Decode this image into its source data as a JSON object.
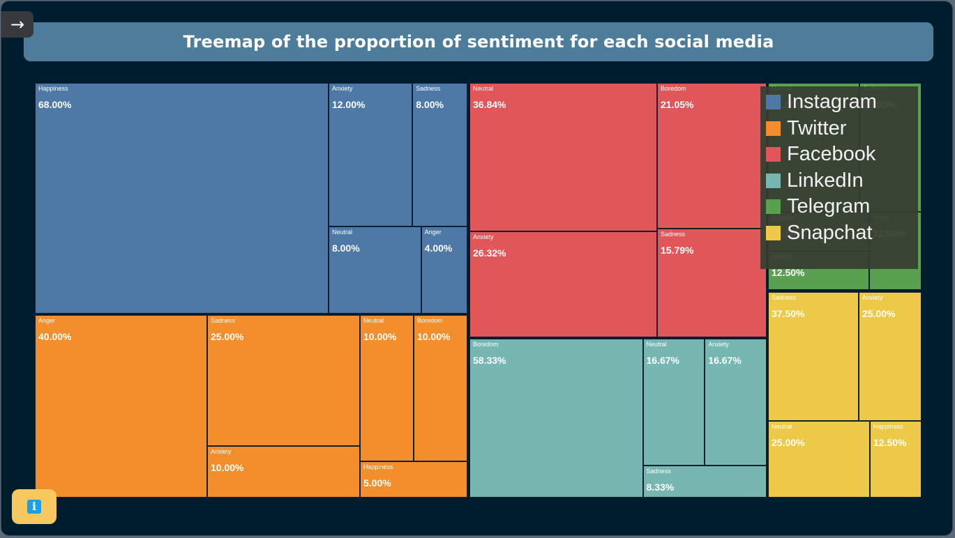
{
  "title": "Treemap of the proportion of sentiment for each social media",
  "nav": {
    "toggle_icon": "→"
  },
  "info": {
    "icon": "i"
  },
  "colors": {
    "Instagram": "#4e79a7",
    "Twitter": "#f28e2b",
    "Facebook": "#e15759",
    "LinkedIn": "#76b7b2",
    "Telegram": "#59a14f",
    "Snapchat": "#edc948"
  },
  "legend": [
    "Instagram",
    "Twitter",
    "Facebook",
    "LinkedIn",
    "Telegram",
    "Snapchat"
  ],
  "chart_data": {
    "type": "treemap",
    "title": "Treemap of the proportion of sentiment for each social media",
    "groups": [
      {
        "name": "Instagram",
        "children": [
          {
            "name": "Happiness",
            "value": 68.0,
            "label": "68.00%"
          },
          {
            "name": "Anxiety",
            "value": 12.0,
            "label": "12.00%"
          },
          {
            "name": "Sadness",
            "value": 8.0,
            "label": "8.00%"
          },
          {
            "name": "Neutral",
            "value": 8.0,
            "label": "8.00%"
          },
          {
            "name": "Anger",
            "value": 4.0,
            "label": "4.00%"
          }
        ]
      },
      {
        "name": "Twitter",
        "children": [
          {
            "name": "Anger",
            "value": 40.0,
            "label": "40.00%"
          },
          {
            "name": "Sadness",
            "value": 25.0,
            "label": "25.00%"
          },
          {
            "name": "Anxiety",
            "value": 10.0,
            "label": "10.00%"
          },
          {
            "name": "Neutral",
            "value": 10.0,
            "label": "10.00%"
          },
          {
            "name": "Boredom",
            "value": 10.0,
            "label": "10.00%"
          },
          {
            "name": "Happiness",
            "value": 5.0,
            "label": "5.00%"
          }
        ]
      },
      {
        "name": "Facebook",
        "children": [
          {
            "name": "Neutral",
            "value": 36.84,
            "label": "36.84%"
          },
          {
            "name": "Anxiety",
            "value": 26.32,
            "label": "26.32%"
          },
          {
            "name": "Boredom",
            "value": 21.05,
            "label": "21.05%"
          },
          {
            "name": "Sadness",
            "value": 15.79,
            "label": "15.79%"
          }
        ]
      },
      {
        "name": "LinkedIn",
        "children": [
          {
            "name": "Boredom",
            "value": 58.33,
            "label": "58.33%"
          },
          {
            "name": "Neutral",
            "value": 16.67,
            "label": "16.67%"
          },
          {
            "name": "Anxiety",
            "value": 16.67,
            "label": "16.67%"
          },
          {
            "name": "Sadness",
            "value": 8.33,
            "label": "8.33%"
          }
        ]
      },
      {
        "name": "Telegram",
        "children": [
          {
            "name": "Neutral",
            "value": 25.0,
            "label": "25.00%"
          },
          {
            "name": "Sadness",
            "value": 25.0,
            "label": "25.00%"
          },
          {
            "name": "Boredom",
            "value": 12.5,
            "label": "12.50%"
          },
          {
            "name": "Anger",
            "value": 12.5,
            "label": "12.50%"
          },
          {
            "name": "Anxiety",
            "value": 12.5,
            "label": "12.50%"
          }
        ]
      },
      {
        "name": "Snapchat",
        "children": [
          {
            "name": "Sadness",
            "value": 37.5,
            "label": "37.50%"
          },
          {
            "name": "Anxiety",
            "value": 25.0,
            "label": "25.00%"
          },
          {
            "name": "Neutral",
            "value": 25.0,
            "label": "25.00%"
          },
          {
            "name": "Happiness",
            "value": 12.5,
            "label": "12.50%"
          }
        ]
      }
    ]
  }
}
